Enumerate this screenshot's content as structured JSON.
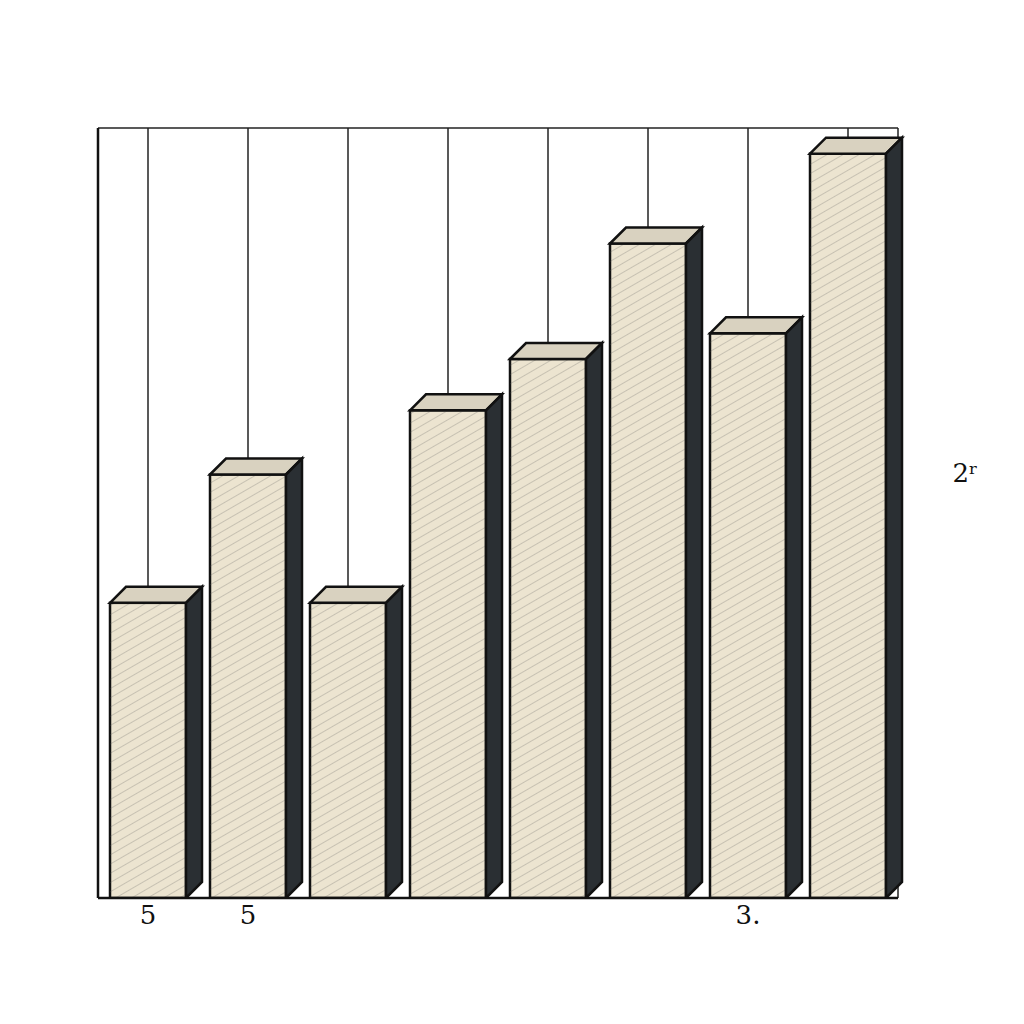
{
  "chart_data": {
    "type": "bar",
    "categories": [
      "5",
      "5",
      null,
      null,
      null,
      null,
      "3.",
      null
    ],
    "values": [
      23,
      33,
      23,
      38,
      42,
      51,
      44,
      58
    ],
    "color": "#ece4d0",
    "ylim": [
      0,
      60
    ],
    "yticks": [
      0,
      10,
      20,
      30,
      40,
      50,
      60
    ],
    "grid": true,
    "tick_labels": "x",
    "annotations": [
      "2ʳ"
    ]
  }
}
